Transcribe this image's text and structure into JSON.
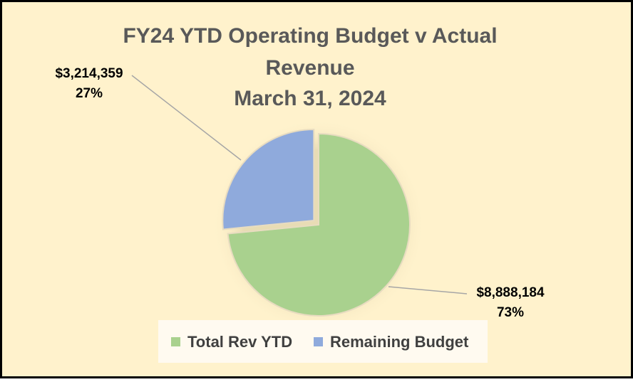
{
  "chart_data": {
    "type": "pie",
    "title_lines": [
      "FY24 YTD Operating Budget v Actual",
      "Revenue",
      "March 31, 2024"
    ],
    "categories": [
      "Total Rev YTD",
      "Remaining Budget"
    ],
    "values": [
      8888184,
      3214359
    ],
    "value_labels": [
      "$8,888,184",
      "$3,214,359"
    ],
    "percents": [
      73,
      27
    ],
    "percent_labels": [
      "73%",
      "27%"
    ],
    "colors": [
      "#a9d18e",
      "#8faadc"
    ],
    "legend": "bottom"
  }
}
